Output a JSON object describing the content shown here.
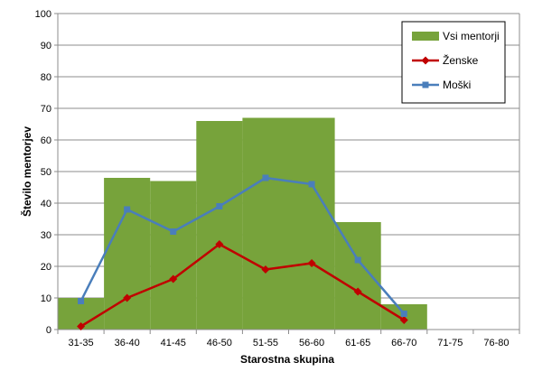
{
  "chart_data": {
    "type": "bar",
    "title": "",
    "xlabel": "Starostna skupina",
    "ylabel": "Število mentorjev",
    "ylim": [
      0,
      100
    ],
    "yticks": [
      0,
      10,
      20,
      30,
      40,
      50,
      60,
      70,
      80,
      90,
      100
    ],
    "grid": true,
    "legend_position": "top-right",
    "categories": [
      "31-35",
      "36-40",
      "41-45",
      "46-50",
      "51-55",
      "56-60",
      "61-65",
      "66-70",
      "71-75",
      "76-80"
    ],
    "series": [
      {
        "name": "Vsi mentorji",
        "type": "bar",
        "color": "#77a33b",
        "values": [
          10,
          48,
          47,
          66,
          67,
          67,
          34,
          8,
          0,
          0
        ]
      },
      {
        "name": "Ženske",
        "type": "line",
        "marker": "diamond",
        "color": "#c00000",
        "values": [
          1,
          10,
          16,
          27,
          19,
          21,
          12,
          3,
          null,
          null
        ]
      },
      {
        "name": "Moški",
        "type": "line",
        "marker": "square",
        "color": "#4a7ebb",
        "values": [
          9,
          38,
          31,
          39,
          48,
          46,
          22,
          5,
          null,
          null
        ]
      }
    ]
  }
}
